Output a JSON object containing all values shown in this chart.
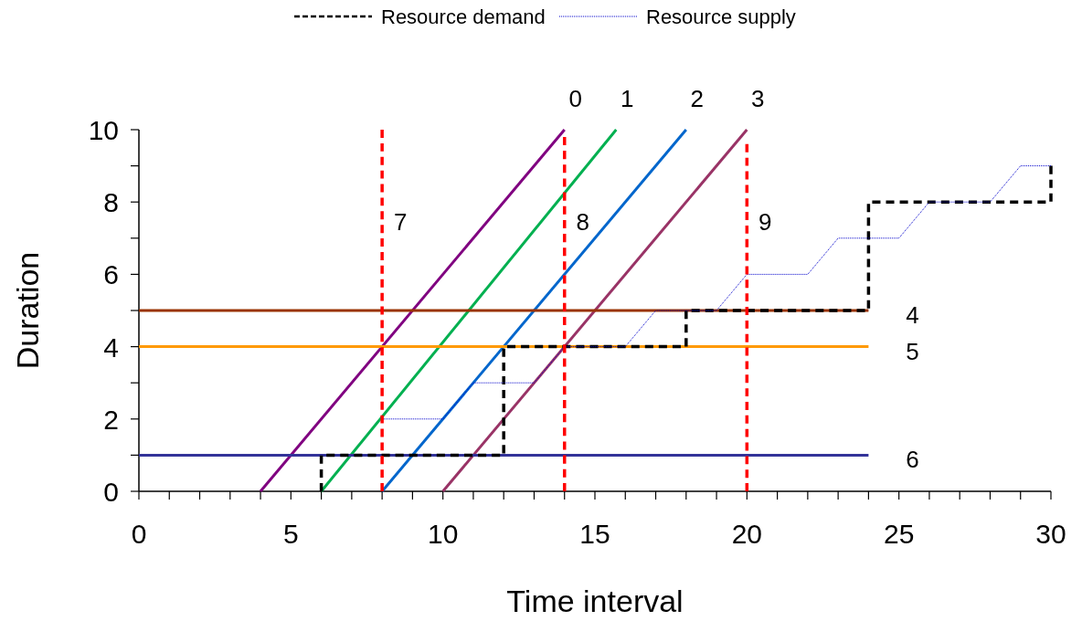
{
  "chart_data": {
    "type": "line",
    "xlabel": "Time interval",
    "ylabel": "Duration",
    "xlim": [
      0,
      30
    ],
    "ylim": [
      0,
      10
    ],
    "xticks": [
      0,
      {
        "value": 1,
        "label": null
      },
      {
        "value": 2,
        "label": null
      },
      {
        "value": 3,
        "label": null
      },
      {
        "value": 4,
        "label": null
      },
      5,
      {
        "value": 6,
        "label": null
      },
      {
        "value": 7,
        "label": null
      },
      {
        "value": 8,
        "label": null
      },
      {
        "value": 9,
        "label": null
      },
      10,
      {
        "value": 11,
        "label": null
      },
      {
        "value": 12,
        "label": null
      },
      {
        "value": 13,
        "label": null
      },
      {
        "value": 14,
        "label": null
      },
      15,
      {
        "value": 16,
        "label": null
      },
      {
        "value": 17,
        "label": null
      },
      {
        "value": 18,
        "label": null
      },
      {
        "value": 19,
        "label": null
      },
      20,
      {
        "value": 21,
        "label": null
      },
      {
        "value": 22,
        "label": null
      },
      {
        "value": 23,
        "label": null
      },
      {
        "value": 24,
        "label": null
      },
      25,
      {
        "value": 26,
        "label": null
      },
      {
        "value": 27,
        "label": null
      },
      {
        "value": 28,
        "label": null
      },
      {
        "value": 29,
        "label": null
      },
      30
    ],
    "yticks": [
      0,
      {
        "value": 1,
        "label": null
      },
      2,
      {
        "value": 3,
        "label": null
      },
      4,
      {
        "value": 5,
        "label": null
      },
      6,
      {
        "value": 7,
        "label": null
      },
      8,
      {
        "value": 9,
        "label": null
      },
      10
    ],
    "grid": false,
    "legend": "top",
    "marker": "none",
    "series": [
      {
        "name": "0",
        "color": "#800080",
        "x": [
          4,
          14
        ],
        "values": [
          0,
          10
        ]
      },
      {
        "name": "1",
        "color": "#00b050",
        "x": [
          6,
          15.7
        ],
        "values": [
          0,
          10
        ]
      },
      {
        "name": "2",
        "color": "#0066cc",
        "x": [
          8,
          18
        ],
        "values": [
          0,
          10
        ]
      },
      {
        "name": "3",
        "color": "#993366",
        "x": [
          10,
          20
        ],
        "values": [
          0,
          10
        ]
      },
      {
        "name": "4",
        "color": "#993300",
        "x": [
          0,
          24
        ],
        "values": [
          5,
          5
        ]
      },
      {
        "name": "5",
        "color": "#ff9900",
        "x": [
          0,
          24
        ],
        "values": [
          4,
          4
        ]
      },
      {
        "name": "6",
        "color": "#333399",
        "x": [
          0,
          24
        ],
        "values": [
          1,
          1
        ]
      },
      {
        "name": "Resource demand",
        "color": "#000000",
        "line_style": "dashed",
        "x": [
          6,
          6,
          12,
          12,
          18,
          18,
          24,
          24,
          30,
          30
        ],
        "values": [
          0,
          1,
          1,
          4,
          4,
          5,
          5,
          8,
          8,
          9
        ]
      },
      {
        "name": "Resource supply",
        "color": "#0000cc",
        "line_style": "dotted",
        "x": [
          8,
          10,
          11,
          13,
          14,
          16,
          17,
          19,
          20,
          22,
          23,
          25,
          26,
          28,
          29,
          30
        ],
        "values": [
          2,
          2,
          3,
          3,
          4,
          4,
          5,
          5,
          6,
          6,
          7,
          7,
          8,
          8,
          9,
          9
        ]
      },
      {
        "name": "7",
        "color": "#ff0000",
        "line_style": "dashed",
        "x": [
          8,
          8
        ],
        "values": [
          0,
          10
        ]
      },
      {
        "name": "8",
        "color": "#ff0000",
        "line_style": "dashed",
        "x": [
          14,
          14
        ],
        "values": [
          0,
          9.8
        ]
      },
      {
        "name": "9",
        "color": "#ff0000",
        "line_style": "dashed",
        "x": [
          20,
          20
        ],
        "values": [
          0,
          9.6
        ]
      }
    ]
  }
}
